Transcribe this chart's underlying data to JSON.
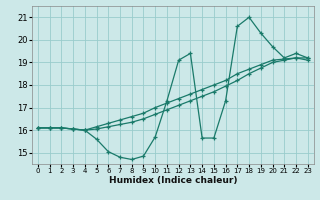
{
  "xlabel": "Humidex (Indice chaleur)",
  "bg_color": "#cce8e8",
  "grid_color": "#99cccc",
  "line_color": "#1a7a6a",
  "xlim": [
    -0.5,
    23.5
  ],
  "ylim": [
    14.5,
    21.5
  ],
  "xticks": [
    0,
    1,
    2,
    3,
    4,
    5,
    6,
    7,
    8,
    9,
    10,
    11,
    12,
    13,
    14,
    15,
    16,
    17,
    18,
    19,
    20,
    21,
    22,
    23
  ],
  "yticks": [
    15,
    16,
    17,
    18,
    19,
    20,
    21
  ],
  "series1_x": [
    0,
    1,
    2,
    3,
    4,
    5,
    6,
    7,
    8,
    9,
    10,
    11,
    12,
    13,
    14,
    15,
    16,
    17,
    18,
    19,
    20,
    21,
    22,
    23
  ],
  "series1_y": [
    16.1,
    16.1,
    16.1,
    16.05,
    16.0,
    15.6,
    15.05,
    14.8,
    14.7,
    14.85,
    15.7,
    17.3,
    19.1,
    19.4,
    15.65,
    15.65,
    17.3,
    20.6,
    21.0,
    20.3,
    19.7,
    19.2,
    19.4,
    19.2
  ],
  "series2_x": [
    0,
    1,
    2,
    3,
    4,
    5,
    6,
    7,
    8,
    9,
    10,
    11,
    12,
    13,
    14,
    15,
    16,
    17,
    18,
    19,
    20,
    21,
    22,
    23
  ],
  "series2_y": [
    16.1,
    16.1,
    16.1,
    16.05,
    16.0,
    16.15,
    16.3,
    16.45,
    16.6,
    16.75,
    17.0,
    17.2,
    17.4,
    17.6,
    17.8,
    18.0,
    18.2,
    18.5,
    18.7,
    18.9,
    19.1,
    19.15,
    19.2,
    19.1
  ],
  "series3_x": [
    0,
    1,
    2,
    3,
    4,
    5,
    6,
    7,
    8,
    9,
    10,
    11,
    12,
    13,
    14,
    15,
    16,
    17,
    18,
    19,
    20,
    21,
    22,
    23
  ],
  "series3_y": [
    16.1,
    16.1,
    16.1,
    16.05,
    16.0,
    16.05,
    16.15,
    16.25,
    16.35,
    16.5,
    16.7,
    16.9,
    17.1,
    17.3,
    17.5,
    17.7,
    17.95,
    18.2,
    18.5,
    18.75,
    19.0,
    19.1,
    19.2,
    19.2
  ]
}
